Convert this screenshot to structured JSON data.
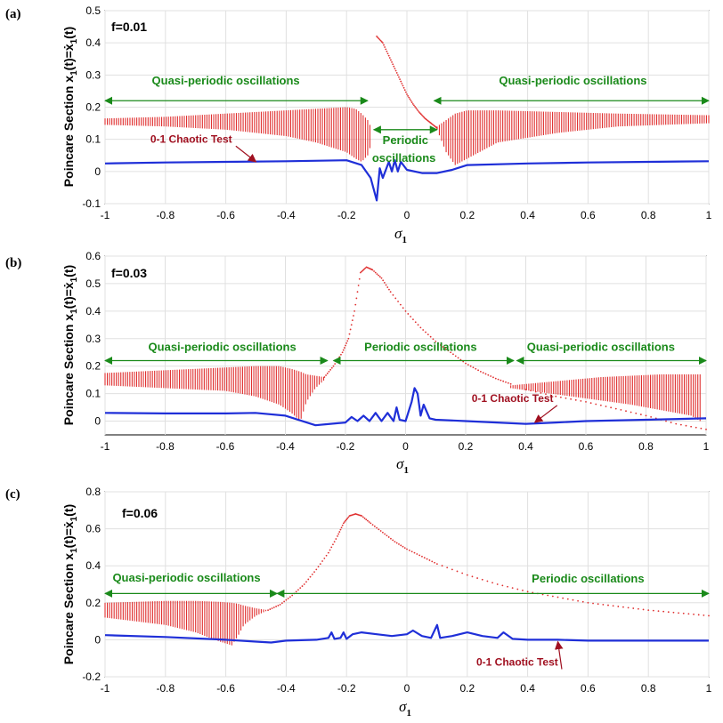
{
  "colors": {
    "poincare": "#e03030",
    "chaos": "#1f2fd8",
    "annotation_green": "#1a8a1a",
    "annotation_red": "#a01020",
    "grid": "#e0e0e0"
  },
  "chart_data": [
    {
      "type": "scatter",
      "panel": "(a)",
      "flabel": "f=0.01",
      "xlabel": "σ",
      "xlabel_sub": "1",
      "ylabel": "Poincare Section x1(t)=ẋ1(t)",
      "xlim": [
        -1,
        1
      ],
      "ylim": [
        -0.1,
        0.5
      ],
      "xticks": [
        "-1",
        "-0.8",
        "-0.6",
        "-0.4",
        "-0.2",
        "0",
        "0.2",
        "0.4",
        "0.6",
        "0.8",
        "1"
      ],
      "yticks": [
        "-0.1",
        "0",
        "0.1",
        "0.2",
        "0.3",
        "0.4",
        "0.5"
      ],
      "yticks_values": [
        -0.1,
        0,
        0.1,
        0.2,
        0.3,
        0.4,
        0.5
      ],
      "series": [
        {
          "name": "Poincare section (quasi-periodic band, left)",
          "kind": "band",
          "x": [
            -1.0,
            -0.8,
            -0.6,
            -0.4,
            -0.3,
            -0.2,
            -0.17,
            -0.15,
            -0.13,
            -0.12
          ],
          "low": [
            0.145,
            0.14,
            0.13,
            0.11,
            0.09,
            0.06,
            0.04,
            0.03,
            0.05,
            0.08
          ],
          "high": [
            0.165,
            0.17,
            0.18,
            0.19,
            0.195,
            0.2,
            0.195,
            0.18,
            0.16,
            0.14
          ]
        },
        {
          "name": "Poincare section (quasi-periodic band, right)",
          "kind": "band",
          "x": [
            0.1,
            0.13,
            0.16,
            0.2,
            0.3,
            0.5,
            0.7,
            1.0
          ],
          "low": [
            0.13,
            0.06,
            0.02,
            0.04,
            0.09,
            0.12,
            0.14,
            0.15
          ],
          "high": [
            0.14,
            0.16,
            0.18,
            0.19,
            0.19,
            0.185,
            0.18,
            0.175
          ]
        },
        {
          "name": "Poincare section (periodic)",
          "kind": "dots",
          "x": [
            -0.1,
            -0.08,
            -0.06,
            -0.04,
            -0.02,
            0.0,
            0.02,
            0.04,
            0.06,
            0.08,
            0.1
          ],
          "y": [
            0.42,
            0.4,
            0.36,
            0.32,
            0.28,
            0.24,
            0.21,
            0.185,
            0.165,
            0.15,
            0.135
          ]
        },
        {
          "name": "0-1 Chaotic Test",
          "kind": "line",
          "x": [
            -1.0,
            -0.8,
            -0.6,
            -0.4,
            -0.2,
            -0.15,
            -0.12,
            -0.1,
            -0.09,
            -0.08,
            -0.06,
            -0.05,
            -0.04,
            -0.03,
            -0.02,
            0.0,
            0.05,
            0.1,
            0.15,
            0.2,
            0.4,
            0.6,
            0.8,
            1.0
          ],
          "y": [
            0.025,
            0.028,
            0.03,
            0.032,
            0.035,
            0.02,
            -0.02,
            -0.09,
            0.01,
            -0.02,
            0.03,
            0.0,
            0.035,
            0.0,
            0.03,
            0.005,
            -0.005,
            -0.005,
            0.005,
            0.02,
            0.025,
            0.028,
            0.03,
            0.032
          ]
        }
      ],
      "annotations": [
        {
          "text": "Quasi-periodic oscillations",
          "arrow_x": [
            -1,
            -0.13
          ],
          "arrow_y": 0.22,
          "text_x": -0.6,
          "text_y": 0.27
        },
        {
          "text": "Quasi-periodic oscillations",
          "arrow_x": [
            0.09,
            1
          ],
          "arrow_y": 0.22,
          "text_x": 0.55,
          "text_y": 0.27
        },
        {
          "text": "Periodic",
          "arrow_x": [
            -0.11,
            0.1
          ],
          "arrow_y": 0.13,
          "text_x": -0.005,
          "text_y": 0.085
        },
        {
          "text": "oscillations",
          "text_x": -0.01,
          "text_y": 0.03
        }
      ],
      "chaos_label": {
        "text": "0-1 Chaotic Test",
        "text_x": -0.85,
        "text_y": 0.09,
        "arrow_to": [
          -0.5,
          0.03
        ]
      }
    },
    {
      "type": "scatter",
      "panel": "(b)",
      "flabel": "f=0.03",
      "xlabel": "σ",
      "xlabel_sub": "1",
      "ylabel": "Poincare Section x1(t)=ẋ1(t)",
      "xlim": [
        -1,
        1
      ],
      "ylim": [
        -0.05,
        0.6
      ],
      "xticks": [
        "-1",
        "-0.8",
        "-0.6",
        "-0.4",
        "-0.2",
        "0",
        "0.2",
        "0.4",
        "0.6",
        "0.8",
        "1"
      ],
      "yticks": [
        "0",
        "0.1",
        "0.2",
        "0.3",
        "0.4",
        "0.5",
        "0.6"
      ],
      "yticks_values": [
        0,
        0.1,
        0.2,
        0.3,
        0.4,
        0.5,
        0.6
      ],
      "series": [
        {
          "name": "Poincare section (quasi-periodic band, left)",
          "kind": "band",
          "x": [
            -1.0,
            -0.8,
            -0.6,
            -0.5,
            -0.42,
            -0.38,
            -0.35,
            -0.33,
            -0.3,
            -0.27
          ],
          "low": [
            0.13,
            0.12,
            0.11,
            0.09,
            0.06,
            0.03,
            0.0,
            0.07,
            0.12,
            0.15
          ],
          "high": [
            0.175,
            0.185,
            0.195,
            0.2,
            0.2,
            0.19,
            0.18,
            0.17,
            0.165,
            0.16
          ]
        },
        {
          "name": "Poincare section (quasi-periodic band, right)",
          "kind": "band",
          "x": [
            0.35,
            0.45,
            0.55,
            0.65,
            0.75,
            0.85,
            0.95,
            0.98
          ],
          "low": [
            0.12,
            0.105,
            0.09,
            0.075,
            0.06,
            0.04,
            0.02,
            0.0
          ],
          "high": [
            0.13,
            0.14,
            0.15,
            0.16,
            0.165,
            0.17,
            0.17,
            0.17
          ]
        },
        {
          "name": "Poincare section (periodic)",
          "kind": "dots",
          "x": [
            -0.27,
            -0.24,
            -0.21,
            -0.19,
            -0.17,
            -0.15,
            -0.13,
            -0.11,
            -0.08,
            -0.05,
            0.0,
            0.05,
            0.1,
            0.15,
            0.2,
            0.25,
            0.3,
            0.35
          ],
          "y": [
            0.16,
            0.2,
            0.25,
            0.3,
            0.4,
            0.54,
            0.56,
            0.55,
            0.52,
            0.47,
            0.4,
            0.34,
            0.29,
            0.25,
            0.21,
            0.18,
            0.155,
            0.135
          ]
        },
        {
          "name": "Poincare section (periodic, tail)",
          "kind": "dots",
          "x": [
            0.4,
            0.5,
            0.6,
            0.7,
            0.8,
            0.9,
            1.0
          ],
          "y": [
            0.115,
            0.09,
            0.07,
            0.045,
            0.02,
            -0.01,
            -0.03
          ]
        },
        {
          "name": "0-1 Chaotic Test",
          "kind": "line",
          "x": [
            -1.0,
            -0.8,
            -0.6,
            -0.5,
            -0.4,
            -0.3,
            -0.25,
            -0.2,
            -0.18,
            -0.16,
            -0.14,
            -0.12,
            -0.1,
            -0.08,
            -0.06,
            -0.04,
            -0.03,
            -0.02,
            0.0,
            0.02,
            0.03,
            0.04,
            0.05,
            0.06,
            0.08,
            0.1,
            0.2,
            0.4,
            0.5,
            0.6,
            0.8,
            1.0
          ],
          "y": [
            0.03,
            0.028,
            0.028,
            0.03,
            0.02,
            -0.015,
            -0.01,
            -0.005,
            0.015,
            0.0,
            0.02,
            0.0,
            0.03,
            0.0,
            0.03,
            0.0,
            0.05,
            0.005,
            0.0,
            0.07,
            0.12,
            0.1,
            0.02,
            0.06,
            0.01,
            0.005,
            0.0,
            -0.01,
            -0.005,
            0.0,
            0.005,
            0.01
          ]
        }
      ],
      "annotations": [
        {
          "text": "Quasi-periodic oscillations",
          "arrow_x": [
            -1,
            -0.26
          ],
          "arrow_y": 0.22,
          "text_x": -0.61,
          "text_y": 0.255
        },
        {
          "text": "Periodic oscillations",
          "arrow_x": [
            -0.24,
            0.36
          ],
          "arrow_y": 0.22,
          "text_x": 0.05,
          "text_y": 0.255
        },
        {
          "text": "Quasi-periodic oscillations",
          "arrow_x": [
            0.37,
            1
          ],
          "arrow_y": 0.22,
          "text_x": 0.65,
          "text_y": 0.255
        }
      ],
      "chaos_label": {
        "text": "0-1 Chaotic Test",
        "text_x": 0.22,
        "text_y": 0.07,
        "arrow_to": [
          0.43,
          -0.005
        ]
      }
    },
    {
      "type": "scatter",
      "panel": "(c)",
      "flabel": "f=0.06",
      "xlabel": "σ",
      "xlabel_sub": "1",
      "ylabel": "Poincare Section x1(t)=ẋ1(t)",
      "xlim": [
        -1,
        1
      ],
      "ylim": [
        -0.2,
        0.8
      ],
      "xticks": [
        "-1",
        "-0.8",
        "-0.6",
        "-0.4",
        "-0.2",
        "0",
        "0.2",
        "0.4",
        "0.6",
        "0.8",
        "1"
      ],
      "yticks": [
        "-0.2",
        "0",
        "0.2",
        "0.4",
        "0.6",
        "0.8"
      ],
      "yticks_values": [
        -0.2,
        0,
        0.2,
        0.4,
        0.6,
        0.8
      ],
      "series": [
        {
          "name": "Poincare section (quasi-periodic band)",
          "kind": "band",
          "x": [
            -1.0,
            -0.9,
            -0.8,
            -0.7,
            -0.62,
            -0.58,
            -0.56,
            -0.54,
            -0.5,
            -0.46
          ],
          "low": [
            0.12,
            0.1,
            0.08,
            0.04,
            -0.01,
            -0.03,
            0.02,
            0.08,
            0.13,
            0.16
          ],
          "high": [
            0.2,
            0.205,
            0.21,
            0.21,
            0.205,
            0.2,
            0.195,
            0.185,
            0.17,
            0.16
          ]
        },
        {
          "name": "Poincare section (periodic)",
          "kind": "dots",
          "x": [
            -0.46,
            -0.42,
            -0.38,
            -0.34,
            -0.3,
            -0.26,
            -0.23,
            -0.21,
            -0.19,
            -0.17,
            -0.15,
            -0.12,
            -0.08,
            -0.04,
            0.0,
            0.05,
            0.1,
            0.2,
            0.3,
            0.4,
            0.5,
            0.6,
            0.7,
            0.8,
            0.9,
            1.0
          ],
          "y": [
            0.16,
            0.19,
            0.24,
            0.3,
            0.38,
            0.47,
            0.56,
            0.63,
            0.67,
            0.68,
            0.67,
            0.63,
            0.58,
            0.53,
            0.49,
            0.45,
            0.41,
            0.35,
            0.3,
            0.26,
            0.23,
            0.2,
            0.18,
            0.16,
            0.145,
            0.13
          ]
        },
        {
          "name": "0-1 Chaotic Test",
          "kind": "line",
          "x": [
            -1.0,
            -0.8,
            -0.6,
            -0.5,
            -0.45,
            -0.4,
            -0.3,
            -0.26,
            -0.25,
            -0.24,
            -0.22,
            -0.21,
            -0.2,
            -0.18,
            -0.15,
            -0.1,
            -0.05,
            0.0,
            0.02,
            0.05,
            0.08,
            0.1,
            0.11,
            0.15,
            0.2,
            0.25,
            0.3,
            0.32,
            0.35,
            0.4,
            0.5,
            0.6,
            0.8,
            1.0
          ],
          "y": [
            0.025,
            0.015,
            0.0,
            -0.01,
            -0.015,
            -0.005,
            0.0,
            0.01,
            0.04,
            0.005,
            0.01,
            0.04,
            0.005,
            0.03,
            0.04,
            0.03,
            0.02,
            0.03,
            0.05,
            0.02,
            0.01,
            0.08,
            0.01,
            0.02,
            0.04,
            0.02,
            0.01,
            0.04,
            0.005,
            0.0,
            0.0,
            -0.005,
            -0.005,
            -0.005
          ]
        }
      ],
      "annotations": [
        {
          "text": "Quasi-periodic oscillations",
          "arrow_x": [
            -1,
            -0.43
          ],
          "arrow_y": 0.25,
          "text_x": -0.73,
          "text_y": 0.315
        },
        {
          "text": "Periodic oscillations",
          "arrow_x": [
            -0.43,
            1
          ],
          "arrow_y": 0.25,
          "text_x": 0.6,
          "text_y": 0.31
        }
      ],
      "chaos_label": {
        "text": "0-1 Chaotic Test",
        "text_x": 0.23,
        "text_y": -0.14,
        "arrow_to": [
          0.5,
          -0.01
        ]
      }
    }
  ]
}
